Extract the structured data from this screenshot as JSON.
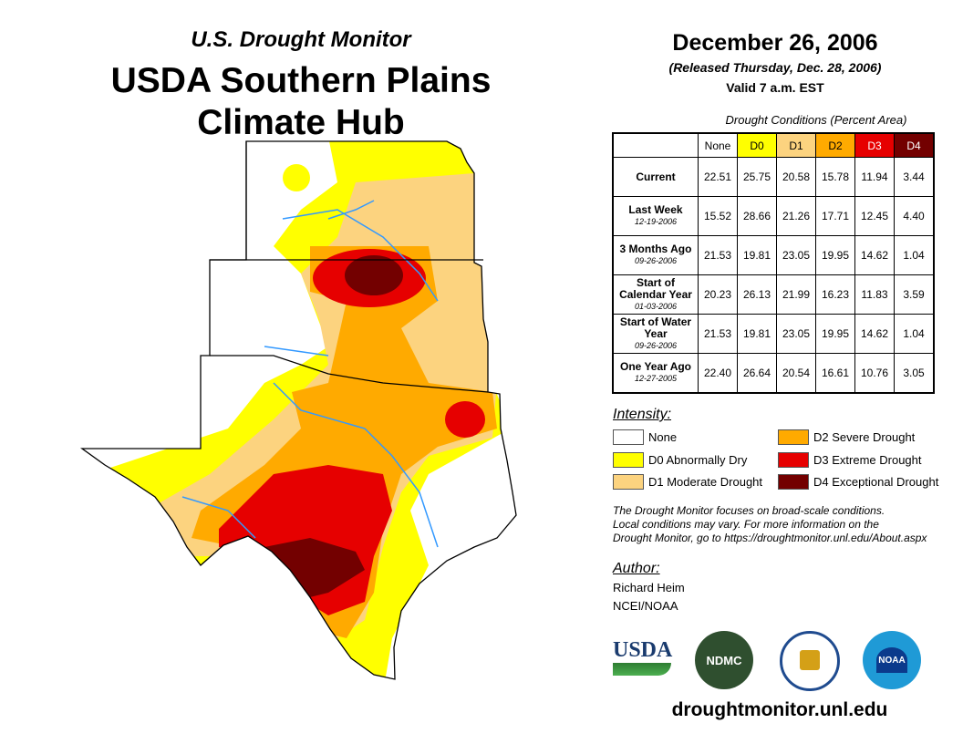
{
  "header": {
    "subtitle": "U.S. Drought Monitor",
    "title_line1": "USDA Southern Plains",
    "title_line2": "Climate Hub"
  },
  "date": {
    "main": "December 26, 2006",
    "released": "(Released Thursday, Dec. 28, 2006)",
    "valid": "Valid 7 a.m. EST"
  },
  "table": {
    "caption": "Drought Conditions (Percent Area)",
    "columns": [
      "None",
      "D0",
      "D1",
      "D2",
      "D3",
      "D4"
    ],
    "column_colors": [
      "#ffffff",
      "#ffff00",
      "#fcd37f",
      "#ffaa00",
      "#e60000",
      "#730000"
    ],
    "rows": [
      {
        "label": "Current",
        "date": "",
        "values": [
          "22.51",
          "25.75",
          "20.58",
          "15.78",
          "11.94",
          "3.44"
        ]
      },
      {
        "label": "Last Week",
        "date": "12-19-2006",
        "values": [
          "15.52",
          "28.66",
          "21.26",
          "17.71",
          "12.45",
          "4.40"
        ]
      },
      {
        "label": "3 Months Ago",
        "date": "09-26-2006",
        "values": [
          "21.53",
          "19.81",
          "23.05",
          "19.95",
          "14.62",
          "1.04"
        ]
      },
      {
        "label": "Start of Calendar Year",
        "date": "01-03-2006",
        "values": [
          "20.23",
          "26.13",
          "21.99",
          "16.23",
          "11.83",
          "3.59"
        ]
      },
      {
        "label": "Start of Water Year",
        "date": "09-26-2006",
        "values": [
          "21.53",
          "19.81",
          "23.05",
          "19.95",
          "14.62",
          "1.04"
        ]
      },
      {
        "label": "One Year Ago",
        "date": "12-27-2005",
        "values": [
          "22.40",
          "26.64",
          "20.54",
          "16.61",
          "10.76",
          "3.05"
        ]
      }
    ]
  },
  "legend": {
    "title": "Intensity:",
    "items": [
      {
        "label": "None",
        "color": "#ffffff"
      },
      {
        "label": "D0 Abnormally Dry",
        "color": "#ffff00"
      },
      {
        "label": "D1 Moderate Drought",
        "color": "#fcd37f"
      },
      {
        "label": "D2 Severe Drought",
        "color": "#ffaa00"
      },
      {
        "label": "D3 Extreme Drought",
        "color": "#e60000"
      },
      {
        "label": "D4 Exceptional Drought",
        "color": "#730000"
      }
    ]
  },
  "note": [
    "The Drought Monitor focuses on broad-scale conditions.",
    "Local conditions may vary. For more information on the",
    "Drought Monitor, go to https://droughtmonitor.unl.edu/About.aspx"
  ],
  "author": {
    "title": "Author:",
    "name": "Richard Heim",
    "org": "NCEI/NOAA"
  },
  "logos": {
    "usda": "USDA",
    "ndmc": "NDMC",
    "noaa": "NOAA"
  },
  "footer_url": "droughtmonitor.unl.edu"
}
